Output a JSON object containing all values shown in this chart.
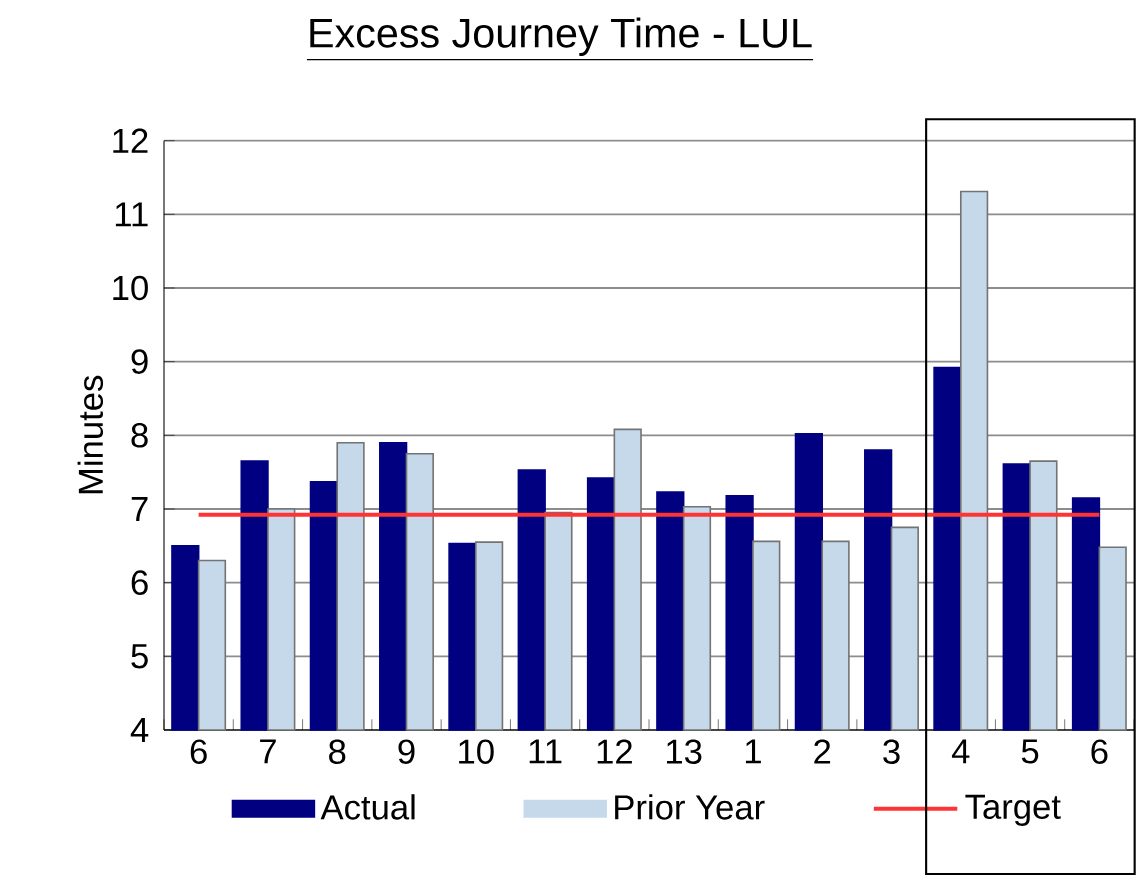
{
  "chart_data": {
    "type": "bar",
    "title": "Excess Journey Time - LUL",
    "ylabel": "Minutes",
    "categories": [
      "6",
      "7",
      "8",
      "9",
      "10",
      "11",
      "12",
      "13",
      "1",
      "2",
      "3",
      "4",
      "5",
      "6"
    ],
    "series": [
      {
        "name": "Actual",
        "color": "#000080",
        "values": [
          6.5,
          7.65,
          7.37,
          7.9,
          6.53,
          7.53,
          7.42,
          7.23,
          7.18,
          8.02,
          7.8,
          8.92,
          7.61,
          7.15
        ]
      },
      {
        "name": "Prior Year",
        "color": "#c5d9ea",
        "values": [
          6.3,
          7.0,
          7.9,
          7.75,
          6.55,
          6.95,
          8.08,
          7.03,
          6.56,
          6.56,
          6.75,
          11.31,
          7.65,
          6.48
        ]
      },
      {
        "name": "Target",
        "type": "line",
        "color": "#ff3333",
        "values": [
          6.92,
          6.92,
          6.92,
          6.92,
          6.92,
          6.92,
          6.92,
          6.92,
          6.92,
          6.92,
          6.92,
          6.92,
          6.92,
          6.92
        ]
      }
    ],
    "ylim": [
      4,
      12
    ],
    "yticks": [
      4,
      5,
      6,
      7,
      8,
      9,
      10,
      11,
      12
    ],
    "grid": "y",
    "legend": "bottom",
    "marker": "none"
  }
}
